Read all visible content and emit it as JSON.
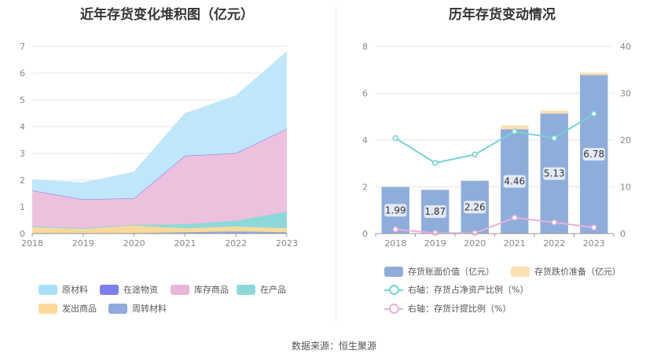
{
  "left": {
    "title": "近年存货变化堆积图（亿元）",
    "chart_data": {
      "type": "area",
      "stacked": true,
      "x": [
        "2018",
        "2019",
        "2020",
        "2021",
        "2022",
        "2023"
      ],
      "ylim": [
        0,
        7
      ],
      "yticks": [
        0,
        1,
        2,
        3,
        4,
        5,
        6,
        7
      ],
      "grid": true,
      "legend_position": "bottom",
      "series": [
        {
          "name": "周转材料",
          "color": "#8faadc",
          "values": [
            0.02,
            0.02,
            0.02,
            0.05,
            0.08,
            0.05
          ]
        },
        {
          "name": "发出商品",
          "color": "#fcd99a",
          "values": [
            0.22,
            0.15,
            0.28,
            0.15,
            0.18,
            0.15
          ]
        },
        {
          "name": "在产品",
          "color": "#8dd9d9",
          "values": [
            0.03,
            0.03,
            0.03,
            0.15,
            0.22,
            0.62
          ]
        },
        {
          "name": "库存商品",
          "color": "#ecc1de",
          "values": [
            1.33,
            1.07,
            0.98,
            2.55,
            2.52,
            3.08
          ]
        },
        {
          "name": "在途物资",
          "color": "#7b7ff0",
          "values": [
            0.01,
            0.01,
            0.01,
            0.01,
            0.01,
            0.01
          ]
        },
        {
          "name": "原材料",
          "color": "#c0e6fa",
          "values": [
            0.41,
            0.62,
            0.98,
            1.58,
            2.14,
            2.89
          ]
        }
      ]
    },
    "legend": [
      {
        "name": "原材料",
        "color": "#a9def9"
      },
      {
        "name": "在途物资",
        "color": "#7b7ff0"
      },
      {
        "name": "库存商品",
        "color": "#e8b6d8"
      },
      {
        "name": "在产品",
        "color": "#8dd9d9"
      },
      {
        "name": "发出商品",
        "color": "#fcd99a"
      },
      {
        "name": "周转材料",
        "color": "#8faadc"
      }
    ]
  },
  "right": {
    "title": "历年存货变动情况",
    "chart_data": {
      "type": "bar",
      "categories": [
        "2018",
        "2019",
        "2020",
        "2021",
        "2022",
        "2023"
      ],
      "ylim_left": [
        0,
        8
      ],
      "yticks_left": [
        0,
        2,
        4,
        6,
        8
      ],
      "ylim_right": [
        0,
        40
      ],
      "yticks_right": [
        0,
        10,
        20,
        30,
        40
      ],
      "grid": true,
      "legend_position": "bottom",
      "series": [
        {
          "name": "存货账面价值（亿元）",
          "kind": "bar",
          "axis": "left",
          "color": "#8eaddb",
          "values": [
            1.99,
            1.87,
            2.26,
            4.46,
            5.13,
            6.78
          ],
          "labels": [
            "1.99",
            "1.87",
            "2.26",
            "4.46",
            "5.13",
            "6.78"
          ]
        },
        {
          "name": "存货跌价准备（亿元）",
          "kind": "bar",
          "axis": "left",
          "stacked": true,
          "color": "#fde0b0",
          "values": [
            0.0,
            0.0,
            0.0,
            0.16,
            0.13,
            0.1
          ]
        },
        {
          "name": "右轴：存货占净资产比例（%）",
          "kind": "line",
          "axis": "right",
          "color": "#76d3d3",
          "values": [
            20.4,
            15.1,
            16.9,
            21.8,
            20.4,
            25.6
          ]
        },
        {
          "name": "右轴：存货计提比例（%）",
          "kind": "line",
          "axis": "right",
          "color": "#e9b0dc",
          "values": [
            0.9,
            0.1,
            0.1,
            3.4,
            2.4,
            1.3
          ]
        }
      ]
    }
  },
  "source": "数据来源：恒生聚源"
}
